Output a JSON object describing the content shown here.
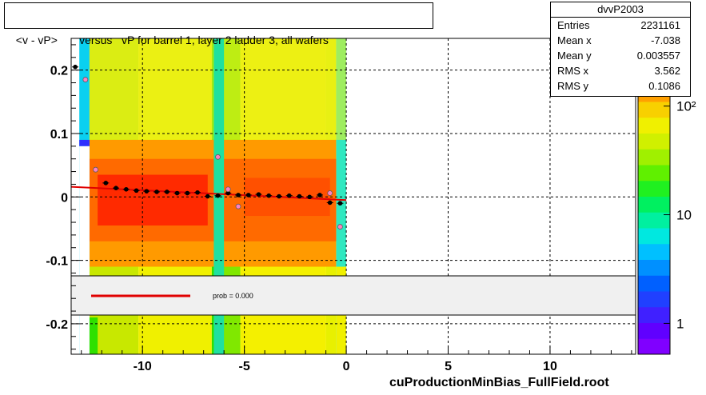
{
  "title": "<v - vP>       versus   vP for barrel 1, layer 2 ladder 3, all wafers",
  "footer": "cuProductionMinBias_FullField.root",
  "stats": {
    "name": "dvvP2003",
    "rows": [
      {
        "label": "Entries",
        "value": "2231161"
      },
      {
        "label": "Mean x",
        "value": "-7.038"
      },
      {
        "label": "Mean y",
        "value": "0.003557"
      },
      {
        "label": "RMS x",
        "value": "3.562"
      },
      {
        "label": "RMS y",
        "value": "0.1086"
      }
    ]
  },
  "legend": {
    "label": "prob = 0.000"
  },
  "chart_data": {
    "type": "heatmap",
    "xlim": [
      -13.5,
      14.2
    ],
    "ylim": [
      -0.248,
      0.25
    ],
    "xticks": [
      -10,
      -5,
      0,
      5,
      10
    ],
    "xtick_labels": [
      "-10",
      "-5",
      "0",
      "5",
      "10"
    ],
    "yticks": [
      -0.2,
      -0.1,
      0,
      0.1,
      0.2
    ],
    "ytick_labels": [
      "-0.2",
      "-0.1",
      "0",
      "0.1",
      "0.2"
    ],
    "grid": true,
    "colorbar": {
      "scale": "log",
      "ticks": [
        1,
        10,
        100
      ],
      "tick_labels": [
        "1",
        "10",
        "10²"
      ]
    },
    "profile_black": {
      "x": [
        -13.3,
        -11.8,
        -11.3,
        -10.8,
        -10.3,
        -9.8,
        -9.3,
        -8.8,
        -8.3,
        -7.8,
        -7.3,
        -6.8,
        -6.3,
        -5.8,
        -5.3,
        -4.8,
        -4.3,
        -3.8,
        -3.3,
        -2.8,
        -2.3,
        -1.8,
        -1.3,
        -0.8,
        -0.3
      ],
      "y": [
        0.205,
        0.022,
        0.014,
        0.012,
        0.01,
        0.009,
        0.008,
        0.008,
        0.006,
        0.006,
        0.007,
        0.001,
        0.002,
        0.006,
        0.003,
        0.003,
        0.004,
        0.002,
        0.001,
        0.002,
        0.001,
        0.0,
        0.003,
        -0.009,
        -0.01
      ]
    },
    "profile_pink": {
      "x": [
        -12.8,
        -12.3,
        -6.3,
        -5.8,
        -5.3,
        -0.8,
        -0.3
      ],
      "y": [
        0.185,
        0.043,
        0.063,
        0.012,
        -0.015,
        0.006,
        -0.047
      ]
    },
    "fit_line": {
      "x": [
        -13.5,
        0
      ],
      "y": [
        0.016,
        -0.005
      ]
    }
  }
}
